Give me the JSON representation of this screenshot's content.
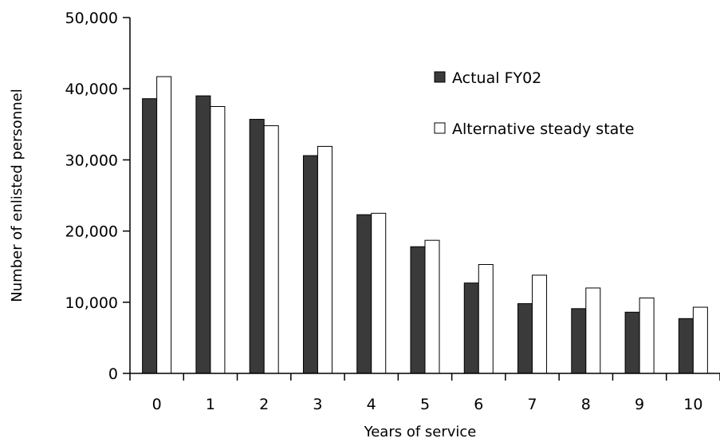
{
  "chart_data": {
    "type": "bar",
    "title": "",
    "xlabel": "Years of service",
    "ylabel": "Number of enlisted personnel",
    "ylim": [
      0,
      50000
    ],
    "yticks": [
      0,
      10000,
      20000,
      30000,
      40000,
      50000
    ],
    "ytick_labels": [
      "0",
      "10,000",
      "20,000",
      "30,000",
      "40,000",
      "50,000"
    ],
    "categories": [
      "0",
      "1",
      "2",
      "3",
      "4",
      "5",
      "6",
      "7",
      "8",
      "9",
      "10"
    ],
    "grid": false,
    "legend_position": "top-right",
    "series": [
      {
        "name": "Actual FY02",
        "color": "#3a3a3a",
        "values": [
          38600,
          39000,
          35700,
          30600,
          22300,
          17800,
          12700,
          9800,
          9100,
          8600,
          7700
        ]
      },
      {
        "name": "Alternative steady state",
        "color": "#ffffff",
        "values": [
          41700,
          37500,
          34800,
          31900,
          22500,
          18700,
          15300,
          13800,
          12000,
          10600,
          9300
        ]
      }
    ]
  }
}
